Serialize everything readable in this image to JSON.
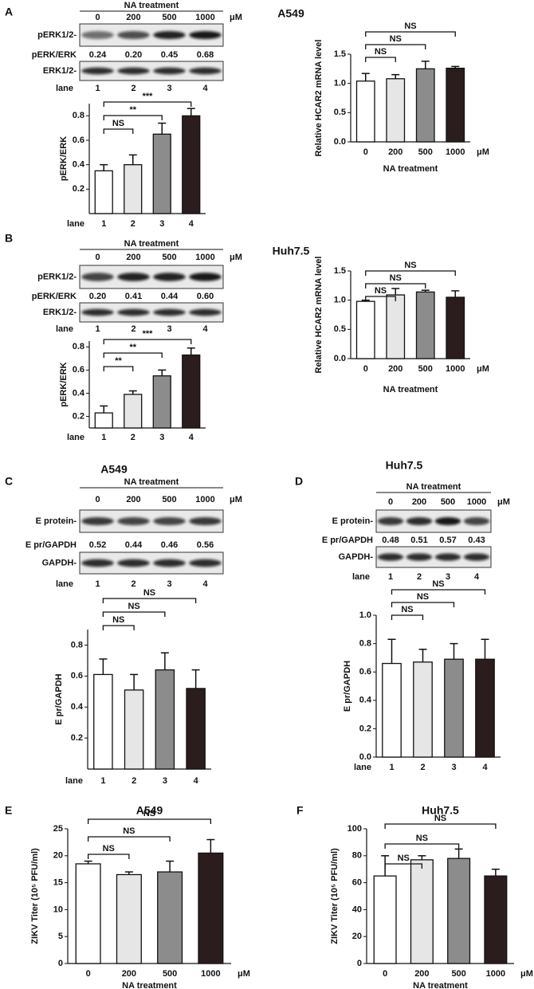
{
  "panels": [
    {
      "letter": "A",
      "cell_line": "A549"
    },
    {
      "letter": "B",
      "cell_line": "Huh7.5"
    },
    {
      "letter": "C",
      "cell_line": "A549"
    },
    {
      "letter": "D",
      "cell_line": "Huh7.5"
    },
    {
      "letter": "E"
    },
    {
      "letter": "F"
    }
  ],
  "blots": [
    {
      "header": "NA treatment",
      "doses": [
        "0",
        "200",
        "500",
        "1000"
      ],
      "unit": "μM",
      "target_label": "pERK1/2-",
      "ratio_label": "pERK/ERK",
      "ratios": [
        "0.24",
        "0.20",
        "0.45",
        "0.68"
      ],
      "control_label": "ERK1/2-",
      "lane_label": "lane",
      "lanes": [
        "1",
        "2",
        "3",
        "4"
      ]
    },
    {
      "header": "NA treatment",
      "doses": [
        "0",
        "200",
        "500",
        "1000"
      ],
      "unit": "μM",
      "target_label": "pERK1/2-",
      "ratio_label": "pERK/ERK",
      "ratios": [
        "0.20",
        "0.41",
        "0.44",
        "0.60"
      ],
      "control_label": "ERK1/2-",
      "lane_label": "lane",
      "lanes": [
        "1",
        "2",
        "3",
        "4"
      ]
    },
    {
      "header": "NA treatment",
      "doses": [
        "0",
        "200",
        "500",
        "1000"
      ],
      "unit": "μM",
      "target_label": "E protein-",
      "ratio_label": "E pr/GAPDH",
      "ratios": [
        "0.52",
        "0.44",
        "0.46",
        "0.56"
      ],
      "control_label": "GAPDH-",
      "lane_label": "lane",
      "lanes": [
        "1",
        "2",
        "3",
        "4"
      ]
    },
    {
      "header": "NA treatment",
      "doses": [
        "0",
        "200",
        "500",
        "1000"
      ],
      "unit": "μM",
      "target_label": "E  protein-",
      "ratio_label": "E pr/GAPDH",
      "ratios": [
        "0.48",
        "0.51",
        "0.57",
        "0.43"
      ],
      "control_label": "GAPDH-",
      "lane_label": "lane",
      "lanes": [
        "1",
        "2",
        "3",
        "4"
      ]
    }
  ],
  "chart_data": [
    {
      "type": "bar",
      "ylabel": "pERK/ERK",
      "lane_label": "lane",
      "categories": [
        "1",
        "2",
        "3",
        "4"
      ],
      "values": [
        0.35,
        0.4,
        0.65,
        0.8
      ],
      "errors": [
        0.05,
        0.08,
        0.09,
        0.06
      ],
      "colors": [
        "#ffffff",
        "#e6e6e6",
        "#8c8c8c",
        "#2b1d1d"
      ],
      "ylim": [
        0,
        0.9
      ],
      "yticks": [
        0.2,
        0.4,
        0.6,
        0.8
      ],
      "significance": [
        "NS",
        "**",
        "***"
      ]
    },
    {
      "type": "bar",
      "ylabel": "Relative HCAR2 mRNA level",
      "xlabel": "NA treatment",
      "x_unit": "μM",
      "categories": [
        "0",
        "200",
        "500",
        "1000"
      ],
      "values": [
        1.04,
        1.08,
        1.25,
        1.26
      ],
      "errors": [
        0.13,
        0.07,
        0.13,
        0.03
      ],
      "colors": [
        "#ffffff",
        "#e6e6e6",
        "#8c8c8c",
        "#2b1d1d"
      ],
      "ylim": [
        0,
        1.5
      ],
      "yticks": [
        {
          "value": 0,
          "label": "0.0"
        },
        0.5,
        {
          "value": 1,
          "label": "1.0"
        },
        1.5
      ],
      "significance": [
        "NS",
        "NS",
        "NS"
      ]
    },
    {
      "type": "bar",
      "ylabel": "pERK/ERK",
      "lane_label": "lane",
      "categories": [
        "1",
        "2",
        "3",
        "4"
      ],
      "values": [
        0.23,
        0.39,
        0.55,
        0.73
      ],
      "errors": [
        0.06,
        0.03,
        0.05,
        0.06
      ],
      "colors": [
        "#ffffff",
        "#e6e6e6",
        "#8c8c8c",
        "#2b1d1d"
      ],
      "ylim": [
        0.1,
        0.85
      ],
      "yticks": [
        0.2,
        0.4,
        0.6,
        0.8
      ],
      "significance": [
        "**",
        "**",
        "***"
      ]
    },
    {
      "type": "bar",
      "ylabel": "Relative HCAR2 mRNA level",
      "xlabel": "NA treatment",
      "x_unit": "μM",
      "categories": [
        "0",
        "200",
        "500",
        "1000"
      ],
      "values": [
        0.98,
        1.09,
        1.14,
        1.05
      ],
      "errors": [
        0.02,
        0.11,
        0.03,
        0.11
      ],
      "colors": [
        "#ffffff",
        "#e6e6e6",
        "#8c8c8c",
        "#2b1d1d"
      ],
      "ylim": [
        0,
        1.5
      ],
      "yticks": [
        {
          "value": 0,
          "label": "0.0"
        },
        0.5,
        {
          "value": 1,
          "label": "1.0"
        },
        1.5
      ],
      "significance": [
        "NS",
        "NS",
        "NS"
      ]
    },
    {
      "type": "bar",
      "ylabel": "E pr/GAPDH",
      "lane_label": "lane",
      "categories": [
        "1",
        "2",
        "3",
        "4"
      ],
      "values": [
        0.61,
        0.51,
        0.64,
        0.52
      ],
      "errors": [
        0.1,
        0.1,
        0.11,
        0.12
      ],
      "colors": [
        "#ffffff",
        "#e6e6e6",
        "#8c8c8c",
        "#2b1d1d"
      ],
      "ylim": [
        0,
        0.9
      ],
      "yticks": [
        0.2,
        0.4,
        0.6,
        0.8
      ],
      "significance": [
        "NS",
        "NS",
        "NS"
      ]
    },
    {
      "type": "bar",
      "ylabel": "E pr/GAPDH",
      "lane_label": "lane",
      "categories": [
        "1",
        "2",
        "3",
        "4"
      ],
      "values": [
        0.66,
        0.67,
        0.69,
        0.69
      ],
      "errors": [
        0.17,
        0.09,
        0.11,
        0.14
      ],
      "colors": [
        "#ffffff",
        "#e6e6e6",
        "#8c8c8c",
        "#2b1d1d"
      ],
      "ylim": [
        0,
        1
      ],
      "yticks": [
        {
          "value": 0,
          "label": "0.0"
        },
        0.2,
        0.4,
        0.6,
        0.8,
        {
          "value": 1,
          "label": "1.0"
        }
      ],
      "significance": [
        "NS",
        "NS",
        "NS"
      ]
    },
    {
      "type": "bar",
      "title": "A549",
      "ylabel": "ZIKV Titer (10⁵ PFU/ml)",
      "xlabel": "NA treatment",
      "x_unit": "μM",
      "categories": [
        "0",
        "200",
        "500",
        "1000"
      ],
      "values": [
        18.5,
        16.5,
        17,
        20.5
      ],
      "errors": [
        0.5,
        0.5,
        2,
        2.5
      ],
      "colors": [
        "#ffffff",
        "#e6e6e6",
        "#8c8c8c",
        "#2b1d1d"
      ],
      "ylim": [
        0,
        25
      ],
      "yticks": [
        0,
        5,
        10,
        15,
        20,
        25
      ],
      "significance": [
        "NS",
        "NS",
        "NS"
      ]
    },
    {
      "type": "bar",
      "title": "Huh7.5",
      "ylabel": "ZIKV Titer (10⁵ PFU/ml)",
      "xlabel": "NA treatment",
      "x_unit": "μM",
      "categories": [
        "0",
        "200",
        "500",
        "1000"
      ],
      "values": [
        65,
        77,
        78,
        65
      ],
      "errors": [
        15,
        3,
        7,
        5
      ],
      "colors": [
        "#ffffff",
        "#e6e6e6",
        "#8c8c8c",
        "#2b1d1d"
      ],
      "ylim": [
        0,
        100
      ],
      "yticks": [
        0,
        20,
        40,
        60,
        80,
        100
      ],
      "significance": [
        "NS",
        "NS",
        "NS"
      ]
    }
  ]
}
